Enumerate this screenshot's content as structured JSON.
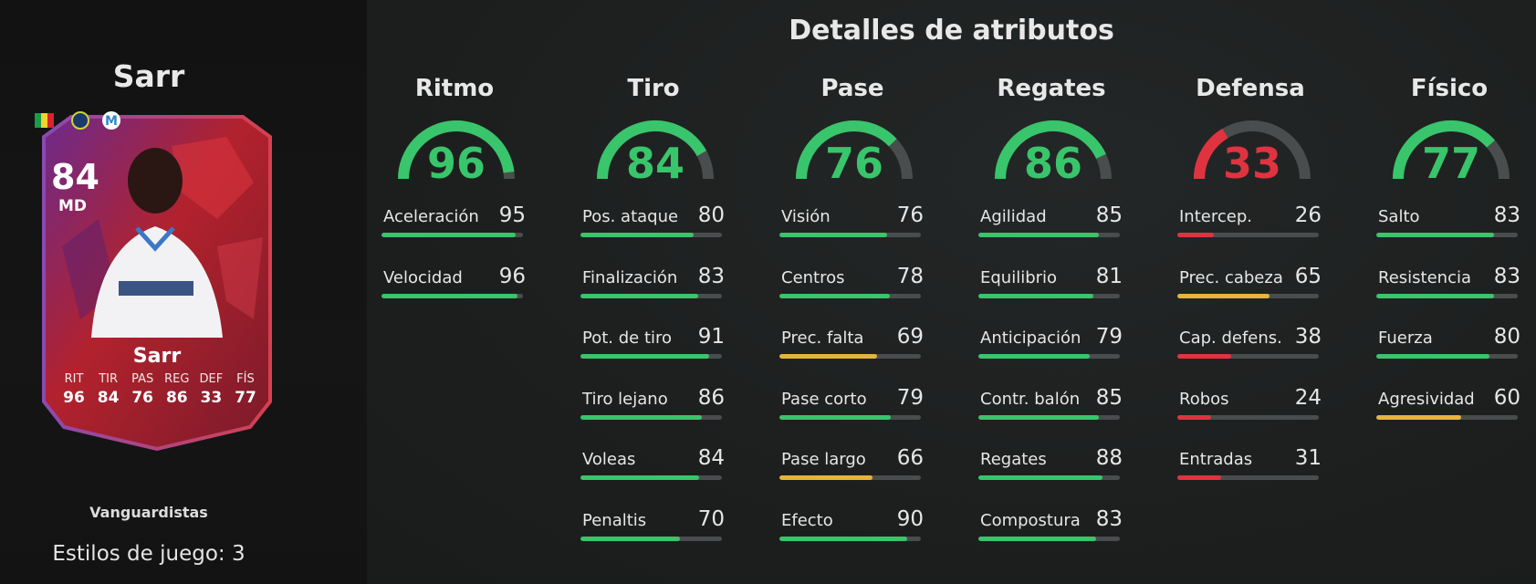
{
  "title": "Detalles de atributos",
  "player": {
    "name": "Sarr",
    "rating": "84",
    "position": "MD",
    "card_name": "Sarr",
    "card_stats": [
      {
        "label": "RIT",
        "value": "96"
      },
      {
        "label": "TIR",
        "value": "84"
      },
      {
        "label": "PAS",
        "value": "76"
      },
      {
        "label": "REG",
        "value": "86"
      },
      {
        "label": "DEF",
        "value": "33"
      },
      {
        "label": "FÍS",
        "value": "77"
      }
    ],
    "card_type": "Vanguardistas",
    "playstyles": "Estilos de juego: 3"
  },
  "colors": {
    "green": "#39c56b",
    "yellow": "#e6b43a",
    "red": "#e03340",
    "track": "#4a4d4d"
  },
  "categories": [
    {
      "name": "Ritmo",
      "value": 96,
      "display": "96",
      "stats": [
        {
          "label": "Aceleración",
          "value": 95,
          "display": "95"
        },
        {
          "label": "Velocidad",
          "value": 96,
          "display": "96"
        }
      ]
    },
    {
      "name": "Tiro",
      "value": 84,
      "display": "84",
      "stats": [
        {
          "label": "Pos. ataque",
          "value": 80,
          "display": "80"
        },
        {
          "label": "Finalización",
          "value": 83,
          "display": "83"
        },
        {
          "label": "Pot. de tiro",
          "value": 91,
          "display": "91"
        },
        {
          "label": "Tiro lejano",
          "value": 86,
          "display": "86"
        },
        {
          "label": "Voleas",
          "value": 84,
          "display": "84"
        },
        {
          "label": "Penaltis",
          "value": 70,
          "display": "70"
        }
      ]
    },
    {
      "name": "Pase",
      "value": 76,
      "display": "76",
      "stats": [
        {
          "label": "Visión",
          "value": 76,
          "display": "76"
        },
        {
          "label": "Centros",
          "value": 78,
          "display": "78"
        },
        {
          "label": "Prec. falta",
          "value": 69,
          "display": "69"
        },
        {
          "label": "Pase corto",
          "value": 79,
          "display": "79"
        },
        {
          "label": "Pase largo",
          "value": 66,
          "display": "66"
        },
        {
          "label": "Efecto",
          "value": 90,
          "display": "90"
        }
      ]
    },
    {
      "name": "Regates",
      "value": 86,
      "display": "86",
      "stats": [
        {
          "label": "Agilidad",
          "value": 85,
          "display": "85"
        },
        {
          "label": "Equilibrio",
          "value": 81,
          "display": "81"
        },
        {
          "label": "Anticipación",
          "value": 79,
          "display": "79"
        },
        {
          "label": "Contr. balón",
          "value": 85,
          "display": "85"
        },
        {
          "label": "Regates",
          "value": 88,
          "display": "88"
        },
        {
          "label": "Compostura",
          "value": 83,
          "display": "83"
        }
      ]
    },
    {
      "name": "Defensa",
      "value": 33,
      "display": "33",
      "stats": [
        {
          "label": "Intercep.",
          "value": 26,
          "display": "26"
        },
        {
          "label": "Prec. cabeza",
          "value": 65,
          "display": "65"
        },
        {
          "label": "Cap. defens.",
          "value": 38,
          "display": "38"
        },
        {
          "label": "Robos",
          "value": 24,
          "display": "24"
        },
        {
          "label": "Entradas",
          "value": 31,
          "display": "31"
        }
      ]
    },
    {
      "name": "Físico",
      "value": 77,
      "display": "77",
      "stats": [
        {
          "label": "Salto",
          "value": 83,
          "display": "83"
        },
        {
          "label": "Resistencia",
          "value": 83,
          "display": "83"
        },
        {
          "label": "Fuerza",
          "value": 80,
          "display": "80"
        },
        {
          "label": "Agresividad",
          "value": 60,
          "display": "60"
        }
      ]
    }
  ]
}
